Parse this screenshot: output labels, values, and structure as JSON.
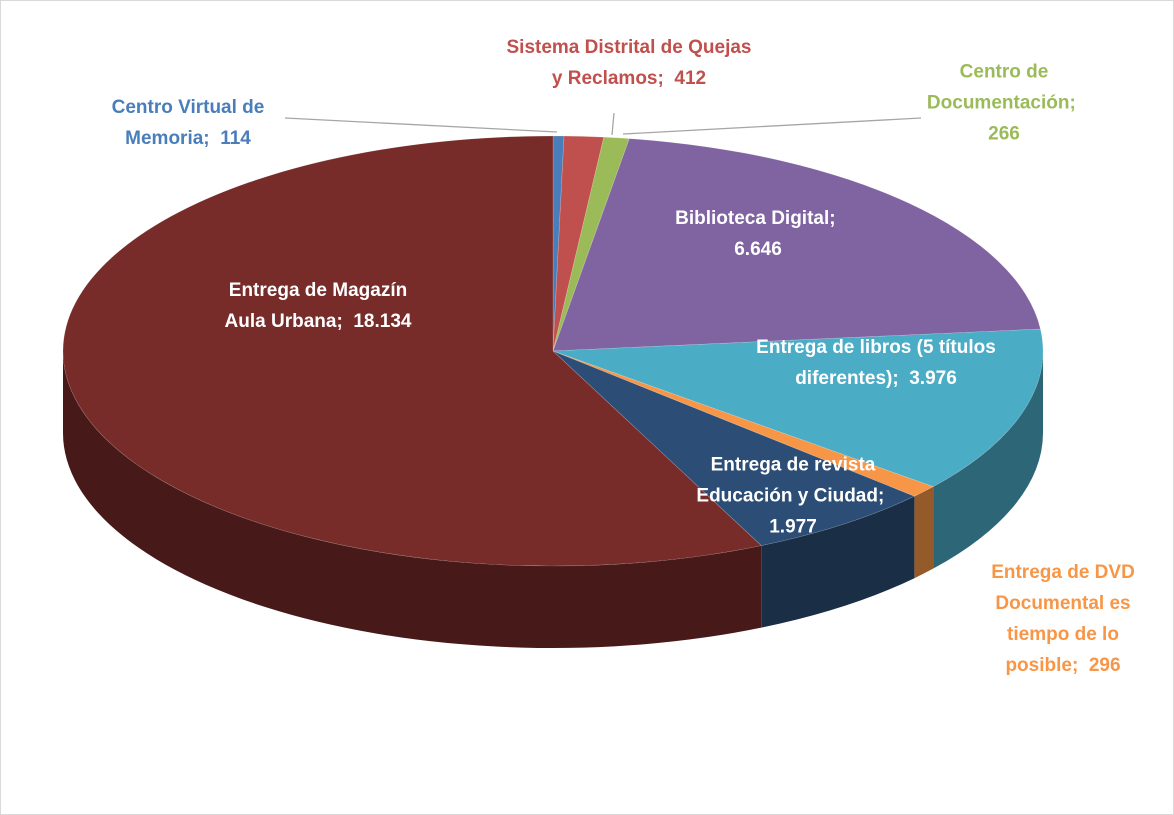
{
  "chart_data": {
    "type": "pie3d",
    "categories": [
      "Centro Virtual de Memoria",
      "Sistema Distrital de Quejas y Reclamos",
      "Centro de Documentación",
      "Biblioteca Digital",
      "Entrega de libros (5 títulos diferentes)",
      "Entrega de DVD Documental es tiempo de lo posible",
      "Entrega de revista Educación y Ciudad",
      "Entrega de Magazín Aula Urbana"
    ],
    "values": [
      114,
      412,
      266,
      6646,
      3976,
      296,
      1977,
      18134
    ],
    "value_labels": [
      "114",
      "412",
      "266",
      "6.646",
      "3.976",
      "296",
      "1.977",
      "18.134"
    ],
    "label_separator": ";",
    "colors": [
      "#4a7ebb",
      "#c0504d",
      "#9bbb59",
      "#8064a2",
      "#4bacc6",
      "#f79646",
      "#2c4d75",
      "#772c2a"
    ]
  }
}
